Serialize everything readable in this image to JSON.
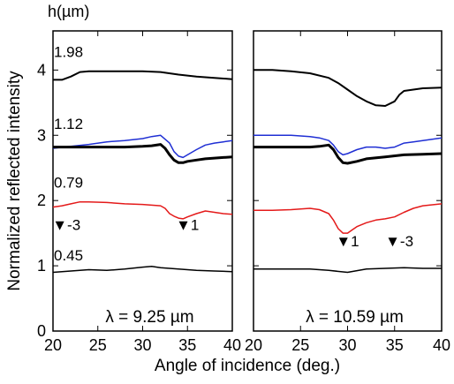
{
  "chart_data": [
    {
      "type": "line",
      "panel": "left",
      "annotation": "λ = 9.25 µm",
      "unit_label": "h(µm)",
      "xlabel": "Angle of incidence (deg.)",
      "ylabel": "Normalized reflected intensity",
      "xlim": [
        20,
        40
      ],
      "ylim": [
        0,
        4.6
      ],
      "xticks": [
        "20",
        "25",
        "30",
        "35",
        "40"
      ],
      "yticks": [
        "0",
        "1",
        "2",
        "3",
        "4"
      ],
      "series_labels": [
        "1.98",
        "1.12",
        "0.79",
        "0.45"
      ],
      "markers": [
        {
          "label": "▼-3",
          "x": 21.5,
          "y": 1.55
        },
        {
          "label": "▼1",
          "x": 35.0,
          "y": 1.55
        }
      ],
      "series": [
        {
          "color": "#000000",
          "width": 2,
          "x": [
            20,
            21,
            22,
            23,
            24,
            26,
            28,
            30,
            32,
            34,
            36,
            38,
            40
          ],
          "y": [
            3.85,
            3.85,
            3.9,
            3.97,
            3.98,
            3.98,
            3.98,
            3.98,
            3.97,
            3.93,
            3.9,
            3.88,
            3.86
          ]
        },
        {
          "color": "#1f2fd4",
          "width": 1.5,
          "x": [
            20,
            22,
            24,
            26,
            28,
            30,
            31,
            32,
            33,
            33.5,
            34,
            34.5,
            35,
            36,
            37,
            38,
            39,
            40
          ],
          "y": [
            2.8,
            2.83,
            2.86,
            2.9,
            2.92,
            2.95,
            2.98,
            3.0,
            2.88,
            2.75,
            2.68,
            2.66,
            2.7,
            2.78,
            2.85,
            2.88,
            2.9,
            2.92
          ]
        },
        {
          "color": "#000000",
          "width": 3,
          "x": [
            20,
            22,
            24,
            26,
            28,
            30,
            31,
            32,
            32.5,
            33,
            33.5,
            34,
            34.5,
            35,
            36,
            37,
            38,
            39,
            40
          ],
          "y": [
            2.82,
            2.82,
            2.82,
            2.82,
            2.82,
            2.83,
            2.84,
            2.86,
            2.8,
            2.7,
            2.62,
            2.58,
            2.58,
            2.6,
            2.62,
            2.64,
            2.65,
            2.66,
            2.67
          ]
        },
        {
          "color": "#e41a1a",
          "width": 1.5,
          "x": [
            20,
            21,
            22,
            23,
            24,
            26,
            28,
            30,
            32,
            32.5,
            33,
            33.5,
            34,
            34.5,
            35,
            36,
            37,
            38,
            39,
            40
          ],
          "y": [
            1.9,
            1.92,
            1.95,
            1.98,
            1.98,
            1.97,
            1.95,
            1.94,
            1.92,
            1.88,
            1.8,
            1.76,
            1.73,
            1.72,
            1.75,
            1.8,
            1.84,
            1.82,
            1.8,
            1.79
          ]
        },
        {
          "color": "#000000",
          "width": 1.5,
          "x": [
            20,
            22,
            24,
            26,
            28,
            30,
            31,
            32,
            34,
            36,
            38,
            40
          ],
          "y": [
            0.9,
            0.92,
            0.94,
            0.93,
            0.95,
            0.98,
            0.99,
            0.97,
            0.95,
            0.93,
            0.92,
            0.91
          ]
        }
      ]
    },
    {
      "type": "line",
      "panel": "right",
      "annotation": "λ = 10.59 µm",
      "xlim": [
        20,
        40
      ],
      "ylim": [
        0,
        4.6
      ],
      "xticks": [
        "20",
        "25",
        "30",
        "35",
        "40"
      ],
      "markers": [
        {
          "label": "▼1",
          "x": 30.0,
          "y": 1.3
        },
        {
          "label": "▼-3",
          "x": 35.5,
          "y": 1.3
        }
      ],
      "series": [
        {
          "color": "#000000",
          "width": 2,
          "x": [
            20,
            22,
            24,
            26,
            28,
            29,
            30,
            31,
            32,
            33,
            34,
            35,
            35.5,
            36,
            37,
            38,
            40
          ],
          "y": [
            4.0,
            4.0,
            3.98,
            3.95,
            3.88,
            3.8,
            3.7,
            3.6,
            3.52,
            3.46,
            3.45,
            3.52,
            3.62,
            3.68,
            3.7,
            3.72,
            3.73
          ]
        },
        {
          "color": "#1f2fd4",
          "width": 1.5,
          "x": [
            20,
            22,
            24,
            26,
            27,
            28,
            28.5,
            29,
            29.5,
            30,
            31,
            32,
            33,
            34,
            35,
            36,
            37,
            38,
            40
          ],
          "y": [
            3.0,
            3.0,
            3.0,
            2.98,
            2.96,
            2.92,
            2.85,
            2.75,
            2.7,
            2.72,
            2.78,
            2.82,
            2.82,
            2.8,
            2.82,
            2.88,
            2.9,
            2.92,
            2.96
          ]
        },
        {
          "color": "#000000",
          "width": 3,
          "x": [
            20,
            22,
            24,
            26,
            27,
            28,
            28.5,
            29,
            29.5,
            30,
            31,
            32,
            34,
            36,
            38,
            40
          ],
          "y": [
            2.82,
            2.82,
            2.82,
            2.82,
            2.83,
            2.85,
            2.78,
            2.66,
            2.58,
            2.57,
            2.6,
            2.64,
            2.67,
            2.7,
            2.71,
            2.72
          ]
        },
        {
          "color": "#e41a1a",
          "width": 1.5,
          "x": [
            20,
            22,
            24,
            26,
            27,
            28,
            28.5,
            29,
            29.5,
            30,
            30.5,
            31,
            32,
            33,
            34,
            35,
            36,
            37,
            38,
            40
          ],
          "y": [
            1.85,
            1.85,
            1.86,
            1.88,
            1.86,
            1.8,
            1.7,
            1.57,
            1.5,
            1.5,
            1.55,
            1.6,
            1.66,
            1.7,
            1.72,
            1.75,
            1.82,
            1.88,
            1.92,
            1.95
          ]
        },
        {
          "color": "#000000",
          "width": 1.5,
          "x": [
            20,
            22,
            24,
            26,
            28,
            30,
            32,
            34,
            36,
            38,
            40
          ],
          "y": [
            0.95,
            0.95,
            0.95,
            0.95,
            0.93,
            0.9,
            0.95,
            0.96,
            0.97,
            0.96,
            0.96
          ]
        }
      ]
    }
  ]
}
